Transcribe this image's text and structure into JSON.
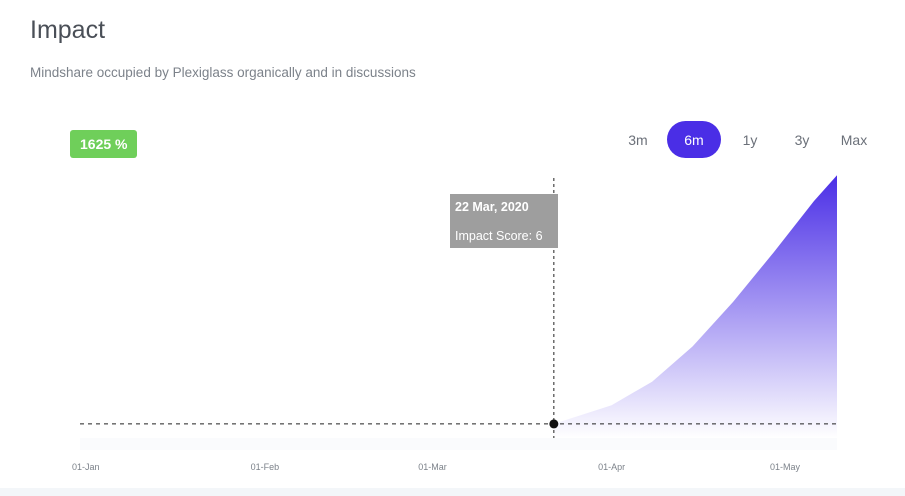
{
  "header": {
    "title": "Impact",
    "subtitle": "Mindshare occupied by Plexiglass organically and in discussions"
  },
  "badge": {
    "text": "1625 %",
    "color": "#6fcf5a"
  },
  "ranges": {
    "options": [
      "3m",
      "6m",
      "1y",
      "3y",
      "Max"
    ],
    "selected": "6m",
    "accent": "#4a2ee6"
  },
  "tooltip": {
    "date": "22 Mar, 2020",
    "text": "Impact Score: 6"
  },
  "chart_data": {
    "type": "area",
    "x_tick_labels": [
      "01-Jan",
      "01-Feb",
      "01-Mar",
      "01-Apr",
      "01-May"
    ],
    "x_ticks": [
      "2020-01-01",
      "2020-02-01",
      "2020-03-01",
      "2020-04-01",
      "2020-05-01"
    ],
    "xlim": [
      "2019-12-31",
      "2020-05-10"
    ],
    "ylim": [
      0,
      110
    ],
    "series": [
      {
        "x": [
          "2020-03-22",
          "2020-04-01",
          "2020-04-08",
          "2020-04-15",
          "2020-04-22",
          "2020-04-29",
          "2020-05-06",
          "2020-05-10"
        ],
        "y": [
          6,
          14,
          24,
          39,
          58,
          79,
          101,
          112
        ]
      }
    ],
    "baseline_y": 6,
    "highlight": {
      "x": "2020-03-22",
      "y": 6
    },
    "fill_color_top": "#4a2ee6",
    "fill_color_bottom": "#ffffff"
  }
}
